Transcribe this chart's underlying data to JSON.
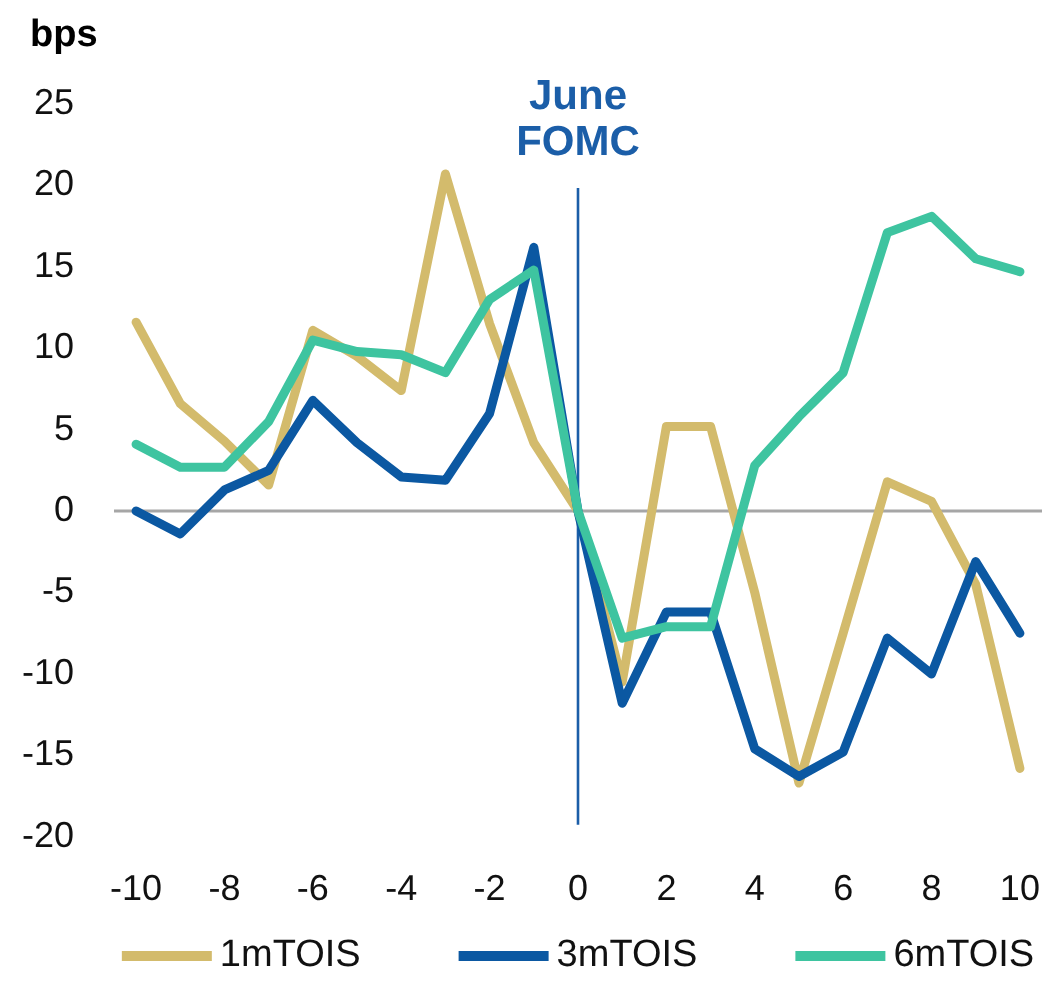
{
  "chart_data": {
    "type": "line",
    "ylabel": "bps",
    "x": [
      -10,
      -9,
      -8,
      -7,
      -6,
      -5,
      -4,
      -3,
      -2,
      -1,
      0,
      1,
      2,
      3,
      4,
      5,
      6,
      7,
      8,
      9,
      10
    ],
    "series": [
      {
        "name": "1mTOIS",
        "color": "#d3bb6c",
        "values": [
          11.6,
          6.6,
          4.3,
          1.6,
          11.1,
          9.5,
          7.4,
          20.7,
          11.5,
          4.2,
          0,
          -10.5,
          5.2,
          5.2,
          -5,
          -16.7,
          -7.5,
          1.8,
          0.6,
          -4.5,
          -15.8
        ]
      },
      {
        "name": "3mTOIS",
        "color": "#0b58a2",
        "values": [
          0,
          -1.4,
          1.3,
          2.5,
          6.8,
          4.2,
          2.1,
          1.9,
          6.0,
          16.2,
          0,
          -11.8,
          -6.2,
          -6.2,
          -14.6,
          -16.3,
          -14.8,
          -7.8,
          -10.0,
          -3.1,
          -7.5
        ]
      },
      {
        "name": "6mTOIS",
        "color": "#3ec4a0",
        "values": [
          4.1,
          2.7,
          2.7,
          5.5,
          10.5,
          9.8,
          9.6,
          8.5,
          13.0,
          14.8,
          0,
          -7.8,
          -7.1,
          -7.1,
          2.8,
          5.8,
          8.5,
          17.1,
          18.1,
          15.5,
          14.7
        ]
      }
    ],
    "xlim": [
      -10.5,
      10.5
    ],
    "xticks": [
      -10,
      -8,
      -6,
      -4,
      -2,
      0,
      2,
      4,
      6,
      8,
      10
    ],
    "ylim": [
      -20,
      25
    ],
    "yticks": [
      -20,
      -15,
      -10,
      -5,
      0,
      5,
      10,
      15,
      20,
      25
    ],
    "grid": false,
    "legend": "bottom",
    "marker": "none",
    "line_style": "solid",
    "ref_lines": [
      {
        "axis": "y",
        "value": 0,
        "color": "#a6a6a6"
      },
      {
        "axis": "x",
        "value": 0,
        "label": "June FOMC",
        "color": "#1b5ea8"
      }
    ]
  }
}
